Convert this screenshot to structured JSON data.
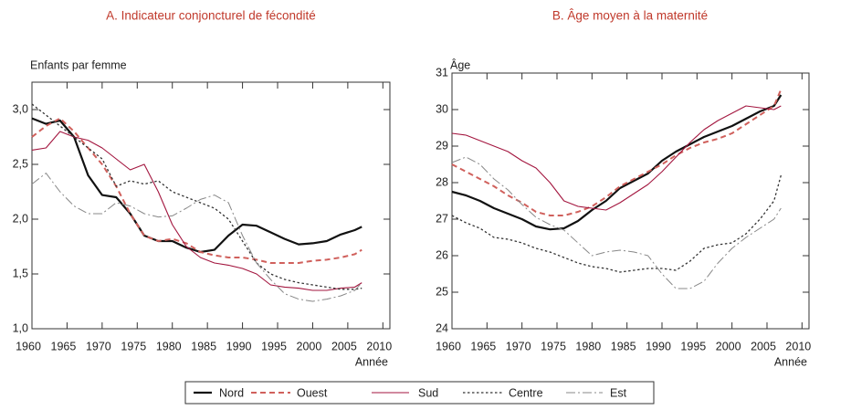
{
  "chart_data": [
    {
      "type": "line",
      "title": "A. Indicateur conjoncturel de fécondité",
      "y_label": "Enfants par femme",
      "x_label": "Année",
      "x": [
        1960,
        1962,
        1964,
        1966,
        1968,
        1970,
        1972,
        1974,
        1976,
        1978,
        1980,
        1982,
        1984,
        1986,
        1988,
        1990,
        1992,
        1994,
        1996,
        1998,
        2000,
        2002,
        2004,
        2006,
        2007
      ],
      "xlim": [
        1960,
        2011
      ],
      "xticks": [
        1960,
        1965,
        1970,
        1975,
        1980,
        1985,
        1990,
        1995,
        2000,
        2005,
        2010
      ],
      "ylim": [
        1.0,
        3.25
      ],
      "yticks": [
        {
          "value": 1.0,
          "label": "1,0"
        },
        {
          "value": 1.5,
          "label": "1,5"
        },
        {
          "value": 2.0,
          "label": "2,0"
        },
        {
          "value": 2.5,
          "label": "2,5"
        },
        {
          "value": 3.0,
          "label": "3,0"
        }
      ],
      "series": [
        {
          "name": "Nord",
          "color": "#111111",
          "values": [
            2.92,
            2.87,
            2.9,
            2.75,
            2.4,
            2.22,
            2.2,
            2.05,
            1.85,
            1.8,
            1.8,
            1.74,
            1.7,
            1.72,
            1.85,
            1.95,
            1.94,
            1.88,
            1.82,
            1.77,
            1.78,
            1.8,
            1.86,
            1.9,
            1.93
          ]
        },
        {
          "name": "Ouest",
          "color": "#d0605c",
          "values": [
            2.75,
            2.85,
            2.92,
            2.8,
            2.65,
            2.5,
            2.3,
            2.05,
            1.85,
            1.8,
            1.82,
            1.78,
            1.7,
            1.67,
            1.65,
            1.65,
            1.63,
            1.6,
            1.6,
            1.6,
            1.62,
            1.63,
            1.65,
            1.68,
            1.72
          ]
        },
        {
          "name": "Sud",
          "color": "#a3163f",
          "values": [
            2.63,
            2.65,
            2.8,
            2.75,
            2.72,
            2.65,
            2.55,
            2.45,
            2.5,
            2.25,
            1.95,
            1.75,
            1.65,
            1.6,
            1.58,
            1.55,
            1.5,
            1.4,
            1.38,
            1.37,
            1.35,
            1.35,
            1.37,
            1.38,
            1.42
          ]
        },
        {
          "name": "Centre",
          "color": "#333333",
          "values": [
            3.05,
            2.95,
            2.85,
            2.75,
            2.65,
            2.55,
            2.3,
            2.35,
            2.32,
            2.35,
            2.25,
            2.2,
            2.15,
            2.1,
            2.0,
            1.8,
            1.6,
            1.5,
            1.45,
            1.42,
            1.4,
            1.38,
            1.36,
            1.36,
            1.37
          ]
        },
        {
          "name": "Est",
          "color": "#888888",
          "values": [
            2.32,
            2.42,
            2.25,
            2.12,
            2.05,
            2.05,
            2.15,
            2.12,
            2.05,
            2.02,
            2.03,
            2.1,
            2.18,
            2.22,
            2.15,
            1.85,
            1.6,
            1.45,
            1.32,
            1.27,
            1.25,
            1.27,
            1.3,
            1.35,
            1.42
          ]
        }
      ]
    },
    {
      "type": "line",
      "title": "B. Âge moyen à la maternité",
      "y_label": "Âge",
      "x_label": "Année",
      "x": [
        1960,
        1962,
        1964,
        1966,
        1968,
        1970,
        1972,
        1974,
        1976,
        1978,
        1980,
        1982,
        1984,
        1986,
        1988,
        1990,
        1992,
        1994,
        1996,
        1998,
        2000,
        2002,
        2004,
        2006,
        2007
      ],
      "xlim": [
        1960,
        2011
      ],
      "xticks": [
        1960,
        1965,
        1970,
        1975,
        1980,
        1985,
        1990,
        1995,
        2000,
        2005,
        2010
      ],
      "ylim": [
        24,
        31
      ],
      "yticks": [
        24,
        25,
        26,
        27,
        28,
        29,
        30,
        31
      ],
      "series": [
        {
          "name": "Nord",
          "color": "#111111",
          "values": [
            27.75,
            27.65,
            27.5,
            27.3,
            27.15,
            27.0,
            26.8,
            26.72,
            26.75,
            26.95,
            27.25,
            27.5,
            27.85,
            28.05,
            28.25,
            28.6,
            28.85,
            29.05,
            29.25,
            29.4,
            29.55,
            29.75,
            29.95,
            30.1,
            30.4
          ]
        },
        {
          "name": "Ouest",
          "color": "#d0605c",
          "values": [
            28.5,
            28.3,
            28.1,
            27.9,
            27.65,
            27.45,
            27.2,
            27.1,
            27.1,
            27.2,
            27.35,
            27.6,
            27.9,
            28.1,
            28.3,
            28.5,
            28.75,
            28.95,
            29.1,
            29.2,
            29.35,
            29.6,
            29.85,
            30.1,
            30.55
          ]
        },
        {
          "name": "Sud",
          "color": "#a3163f",
          "values": [
            29.35,
            29.3,
            29.15,
            29.0,
            28.85,
            28.6,
            28.4,
            28.0,
            27.5,
            27.35,
            27.3,
            27.25,
            27.45,
            27.7,
            27.95,
            28.3,
            28.7,
            29.1,
            29.45,
            29.7,
            29.9,
            30.1,
            30.05,
            30.0,
            30.1
          ]
        },
        {
          "name": "Centre",
          "color": "#333333",
          "values": [
            27.1,
            26.9,
            26.75,
            26.5,
            26.45,
            26.35,
            26.2,
            26.1,
            25.95,
            25.8,
            25.7,
            25.65,
            25.55,
            25.6,
            25.65,
            25.65,
            25.6,
            25.85,
            26.2,
            26.3,
            26.35,
            26.6,
            27.0,
            27.5,
            28.2
          ]
        },
        {
          "name": "Est",
          "color": "#888888",
          "values": [
            28.55,
            28.7,
            28.5,
            28.1,
            27.8,
            27.4,
            27.05,
            26.85,
            26.7,
            26.35,
            26.0,
            26.1,
            26.15,
            26.1,
            26.0,
            25.5,
            25.1,
            25.1,
            25.3,
            25.8,
            26.2,
            26.5,
            26.75,
            27.0,
            27.3
          ]
        }
      ]
    }
  ]
}
